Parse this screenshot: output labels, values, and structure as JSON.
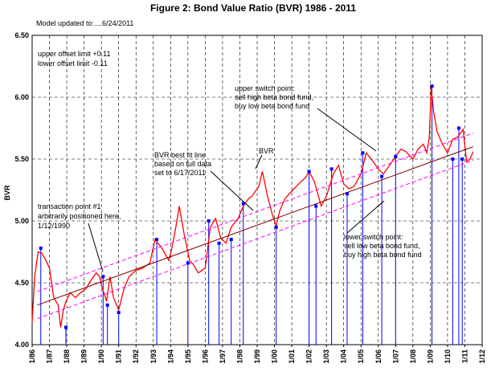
{
  "chart_data": {
    "type": "line",
    "title": "Figure 2: Bond Value Ratio (BVR)  1986 - 2011",
    "subtitle": "Model updated to:....6/24/2011",
    "ylabel": "BVR",
    "xlabel": "",
    "ylim": [
      4.0,
      6.5
    ],
    "xlim": [
      1986.0,
      2012.0
    ],
    "y_ticks": [
      "4.00",
      "4.50",
      "5.00",
      "5.50",
      "6.00",
      "6.50"
    ],
    "x_ticks": [
      "1/86",
      "1/87",
      "1/88",
      "1/89",
      "1/90",
      "1/91",
      "1/92",
      "1/93",
      "1/94",
      "1/95",
      "1/96",
      "1/97",
      "1/98",
      "1/99",
      "1/00",
      "1/01",
      "1/02",
      "1/03",
      "1/04",
      "1/05",
      "1/06",
      "1/07",
      "1/08",
      "1/09",
      "1/10",
      "1/11",
      "1/12"
    ],
    "grid": true,
    "series": [
      {
        "name": "BVR",
        "color": "#ff0000",
        "x": [
          1986.0,
          1986.15,
          1986.35,
          1986.55,
          1986.8,
          1987.0,
          1987.25,
          1987.5,
          1987.65,
          1987.8,
          1987.95,
          1988.2,
          1988.5,
          1988.8,
          1989.1,
          1989.4,
          1989.7,
          1989.9,
          1990.0,
          1990.3,
          1990.5,
          1990.7,
          1991.0,
          1991.3,
          1991.6,
          1992.0,
          1992.4,
          1992.8,
          1993.1,
          1993.5,
          1993.9,
          1994.1,
          1994.3,
          1994.5,
          1994.8,
          1995.1,
          1995.3,
          1995.6,
          1996.0,
          1996.3,
          1996.6,
          1996.9,
          1997.2,
          1997.5,
          1997.9,
          1998.2,
          1998.5,
          1998.7,
          1998.9,
          1999.1,
          1999.3,
          1999.6,
          1999.9,
          2000.1,
          2000.3,
          2000.6,
          2001.0,
          2001.4,
          2001.8,
          2002.0,
          2002.3,
          2002.7,
          2003.0,
          2003.4,
          2003.7,
          2004.0,
          2004.3,
          2004.6,
          2005.0,
          2005.3,
          2005.7,
          2006.0,
          2006.3,
          2006.6,
          2007.0,
          2007.3,
          2007.6,
          2008.0,
          2008.3,
          2008.6,
          2008.8,
          2008.95,
          2009.05,
          2009.2,
          2009.4,
          2009.7,
          2010.0,
          2010.3,
          2010.6,
          2010.9,
          2011.1,
          2011.3,
          2011.48
        ],
        "values": [
          4.18,
          4.55,
          4.75,
          4.74,
          4.68,
          4.62,
          4.38,
          4.32,
          4.14,
          4.28,
          4.35,
          4.42,
          4.38,
          4.42,
          4.45,
          4.52,
          4.58,
          4.55,
          4.48,
          4.35,
          4.55,
          4.38,
          4.28,
          4.45,
          4.55,
          4.6,
          4.62,
          4.66,
          4.85,
          4.78,
          4.68,
          4.8,
          4.95,
          5.12,
          4.88,
          4.68,
          4.65,
          4.58,
          4.62,
          4.95,
          5.02,
          4.86,
          4.82,
          4.95,
          5.02,
          5.12,
          5.18,
          5.2,
          5.24,
          5.28,
          5.4,
          5.2,
          5.04,
          4.96,
          5.08,
          5.18,
          5.24,
          5.3,
          5.35,
          5.4,
          5.32,
          5.12,
          5.2,
          5.38,
          5.45,
          5.3,
          5.26,
          5.28,
          5.38,
          5.55,
          5.48,
          5.42,
          5.38,
          5.44,
          5.52,
          5.58,
          5.56,
          5.5,
          5.58,
          5.62,
          5.55,
          5.68,
          6.08,
          5.88,
          5.72,
          5.62,
          5.55,
          5.66,
          5.68,
          5.74,
          5.48,
          5.5,
          5.56
        ]
      },
      {
        "name": "BVR best fit line",
        "color": "#800000",
        "x": [
          1986.3,
          2011.48
        ],
        "values": [
          4.32,
          5.6
        ]
      },
      {
        "name": "upper offset limit",
        "color": "#ff00ff",
        "x": [
          1986.3,
          2011.48
        ],
        "values": [
          4.43,
          5.71
        ]
      },
      {
        "name": "lower offset limit",
        "color": "#ff00ff",
        "x": [
          1986.3,
          2011.48
        ],
        "values": [
          4.21,
          5.49
        ]
      }
    ],
    "transaction_points": {
      "color": "#0000ff",
      "x": [
        1986.5,
        1987.95,
        1990.1,
        1990.35,
        1991.0,
        1993.2,
        1995.0,
        1996.2,
        1996.8,
        1997.5,
        1998.2,
        2000.1,
        2002.0,
        2002.4,
        2003.3,
        2004.2,
        2005.1,
        2006.2,
        2007.0,
        2009.1,
        2010.3,
        2010.65,
        2010.85
      ],
      "values": [
        4.78,
        4.14,
        4.55,
        4.32,
        4.26,
        4.85,
        4.66,
        5.0,
        4.82,
        4.85,
        5.14,
        4.95,
        5.4,
        5.12,
        5.42,
        5.22,
        5.55,
        5.36,
        5.52,
        6.09,
        5.5,
        5.75,
        5.5
      ]
    },
    "annotations": [
      {
        "text": "upper offset limit +0.11",
        "group": "offsets"
      },
      {
        "text": "lower offset limit  -0.11",
        "group": "offsets"
      },
      {
        "text": "upper switch point:",
        "group": "upper"
      },
      {
        "text": "sell high beta bond fund,",
        "group": "upper"
      },
      {
        "text": "buy low beta bond fund",
        "group": "upper"
      },
      {
        "text": "BVR best fit line",
        "group": "fit"
      },
      {
        "text": "based on full data",
        "group": "fit"
      },
      {
        "text": "set to 6/17/2011",
        "group": "fit"
      },
      {
        "text": "BVR",
        "group": "bvr"
      },
      {
        "text": "transaction point #1",
        "group": "tp"
      },
      {
        "text": "arbitrarily positioned here,",
        "group": "tp"
      },
      {
        "text": "1/12/1990",
        "group": "tp"
      },
      {
        "text": "lower switch point:",
        "group": "lower"
      },
      {
        "text": "sell low beta bond fund,",
        "group": "lower"
      },
      {
        "text": "buy high beta bond fund",
        "group": "lower"
      }
    ]
  }
}
